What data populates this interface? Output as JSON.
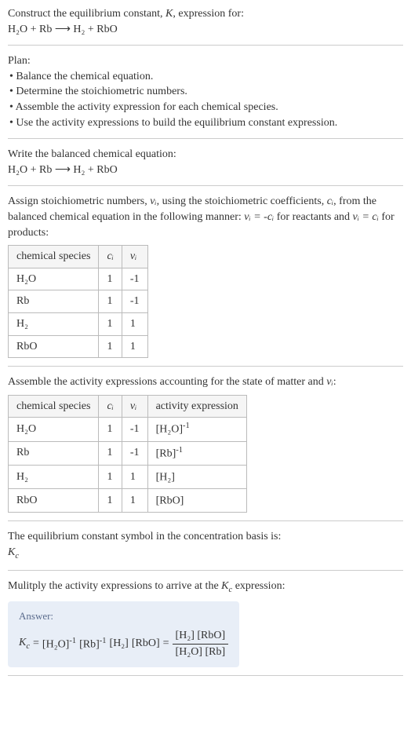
{
  "intro": {
    "line1": "Construct the equilibrium constant, ",
    "K": "K",
    "line1b": ", expression for:",
    "equation": "H₂O + Rb ⟶ H₂ + RbO"
  },
  "plan": {
    "title": "Plan:",
    "b1": "• Balance the chemical equation.",
    "b2": "• Determine the stoichiometric numbers.",
    "b3": "• Assemble the activity expression for each chemical species.",
    "b4": "• Use the activity expressions to build the equilibrium constant expression."
  },
  "balanced": {
    "title": "Write the balanced chemical equation:",
    "equation": "H₂O + Rb ⟶ H₂ + RbO"
  },
  "assign": {
    "text1": "Assign stoichiometric numbers, ",
    "nu": "νᵢ",
    "text2": ", using the stoichiometric coefficients, ",
    "ci": "cᵢ",
    "text3": ", from the balanced chemical equation in the following manner: ",
    "rel1": "νᵢ = -cᵢ",
    "text4": " for reactants and ",
    "rel2": "νᵢ = cᵢ",
    "text5": " for products:",
    "headers": [
      "chemical species",
      "cᵢ",
      "νᵢ"
    ],
    "rows": [
      [
        "H₂O",
        "1",
        "-1"
      ],
      [
        "Rb",
        "1",
        "-1"
      ],
      [
        "H₂",
        "1",
        "1"
      ],
      [
        "RbO",
        "1",
        "1"
      ]
    ]
  },
  "assemble": {
    "text1": "Assemble the activity expressions accounting for the state of matter and ",
    "nu": "νᵢ",
    "text2": ":",
    "headers": [
      "chemical species",
      "cᵢ",
      "νᵢ",
      "activity expression"
    ],
    "rows": [
      {
        "sp": "H₂O",
        "c": "1",
        "v": "-1",
        "ae_base": "[H₂O]",
        "ae_exp": "-1"
      },
      {
        "sp": "Rb",
        "c": "1",
        "v": "-1",
        "ae_base": "[Rb]",
        "ae_exp": "-1"
      },
      {
        "sp": "H₂",
        "c": "1",
        "v": "1",
        "ae_base": "[H₂]",
        "ae_exp": ""
      },
      {
        "sp": "RbO",
        "c": "1",
        "v": "1",
        "ae_base": "[RbO]",
        "ae_exp": ""
      }
    ]
  },
  "symbol": {
    "text": "The equilibrium constant symbol in the concentration basis is:",
    "kc": "K",
    "kc_sub": "c"
  },
  "multiply": {
    "text1": "Mulitply the activity expressions to arrive at the ",
    "kc": "K",
    "kc_sub": "c",
    "text2": " expression:"
  },
  "answer": {
    "label": "Answer:",
    "kc": "K",
    "kc_sub": "c",
    "eq": " = ",
    "t1_base": "[H₂O]",
    "t1_exp": "-1",
    "t2_base": "[Rb]",
    "t2_exp": "-1",
    "t3": "[H₂]",
    "t4": "[RbO]",
    "eq2": " = ",
    "num": "[H₂] [RbO]",
    "den": "[H₂O] [Rb]"
  },
  "style": {
    "border_color": "#cccccc",
    "answer_bg": "#e8eef7",
    "answer_label_color": "#5a6b8c"
  }
}
